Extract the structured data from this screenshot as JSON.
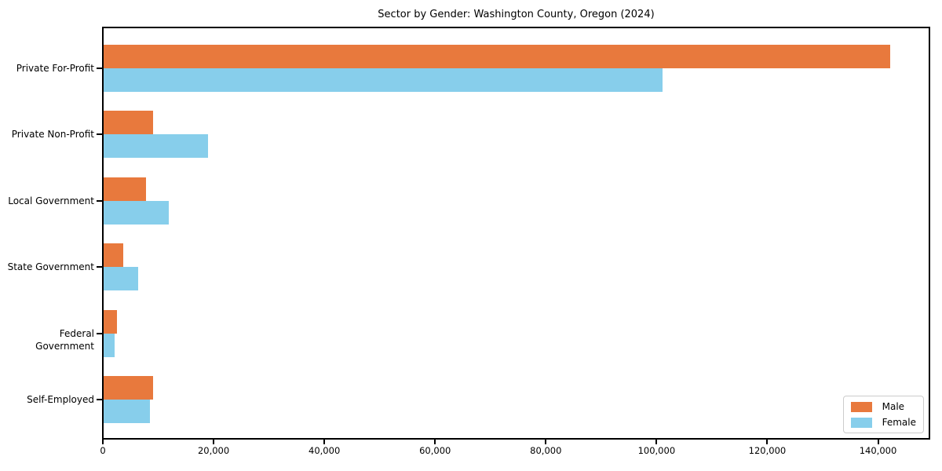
{
  "chart_data": {
    "type": "bar",
    "orientation": "horizontal",
    "title": "Sector by Gender: Washington County, Oregon (2024)",
    "categories": [
      "Private For-Profit",
      "Private Non-Profit",
      "Local Government",
      "State Government",
      "Federal Government",
      "Self-Employed"
    ],
    "series": [
      {
        "name": "Male",
        "color": "#E8793D",
        "values": [
          142000,
          9000,
          7600,
          3500,
          2400,
          9000
        ]
      },
      {
        "name": "Female",
        "color": "#87CEEB",
        "values": [
          100900,
          18800,
          11700,
          6300,
          2000,
          8400
        ]
      }
    ],
    "xlabel": "",
    "ylabel": "",
    "xlim": [
      0,
      149000
    ],
    "xticks": {
      "values": [
        0,
        20000,
        40000,
        60000,
        80000,
        100000,
        120000,
        140000
      ],
      "labels": [
        "0",
        "20,000",
        "40,000",
        "60,000",
        "80,000",
        "100,000",
        "120,000",
        "140,000"
      ]
    },
    "grid": false,
    "legend": {
      "position": "lower right"
    },
    "colors": {
      "spine": "#000000",
      "background": "#ffffff"
    }
  }
}
